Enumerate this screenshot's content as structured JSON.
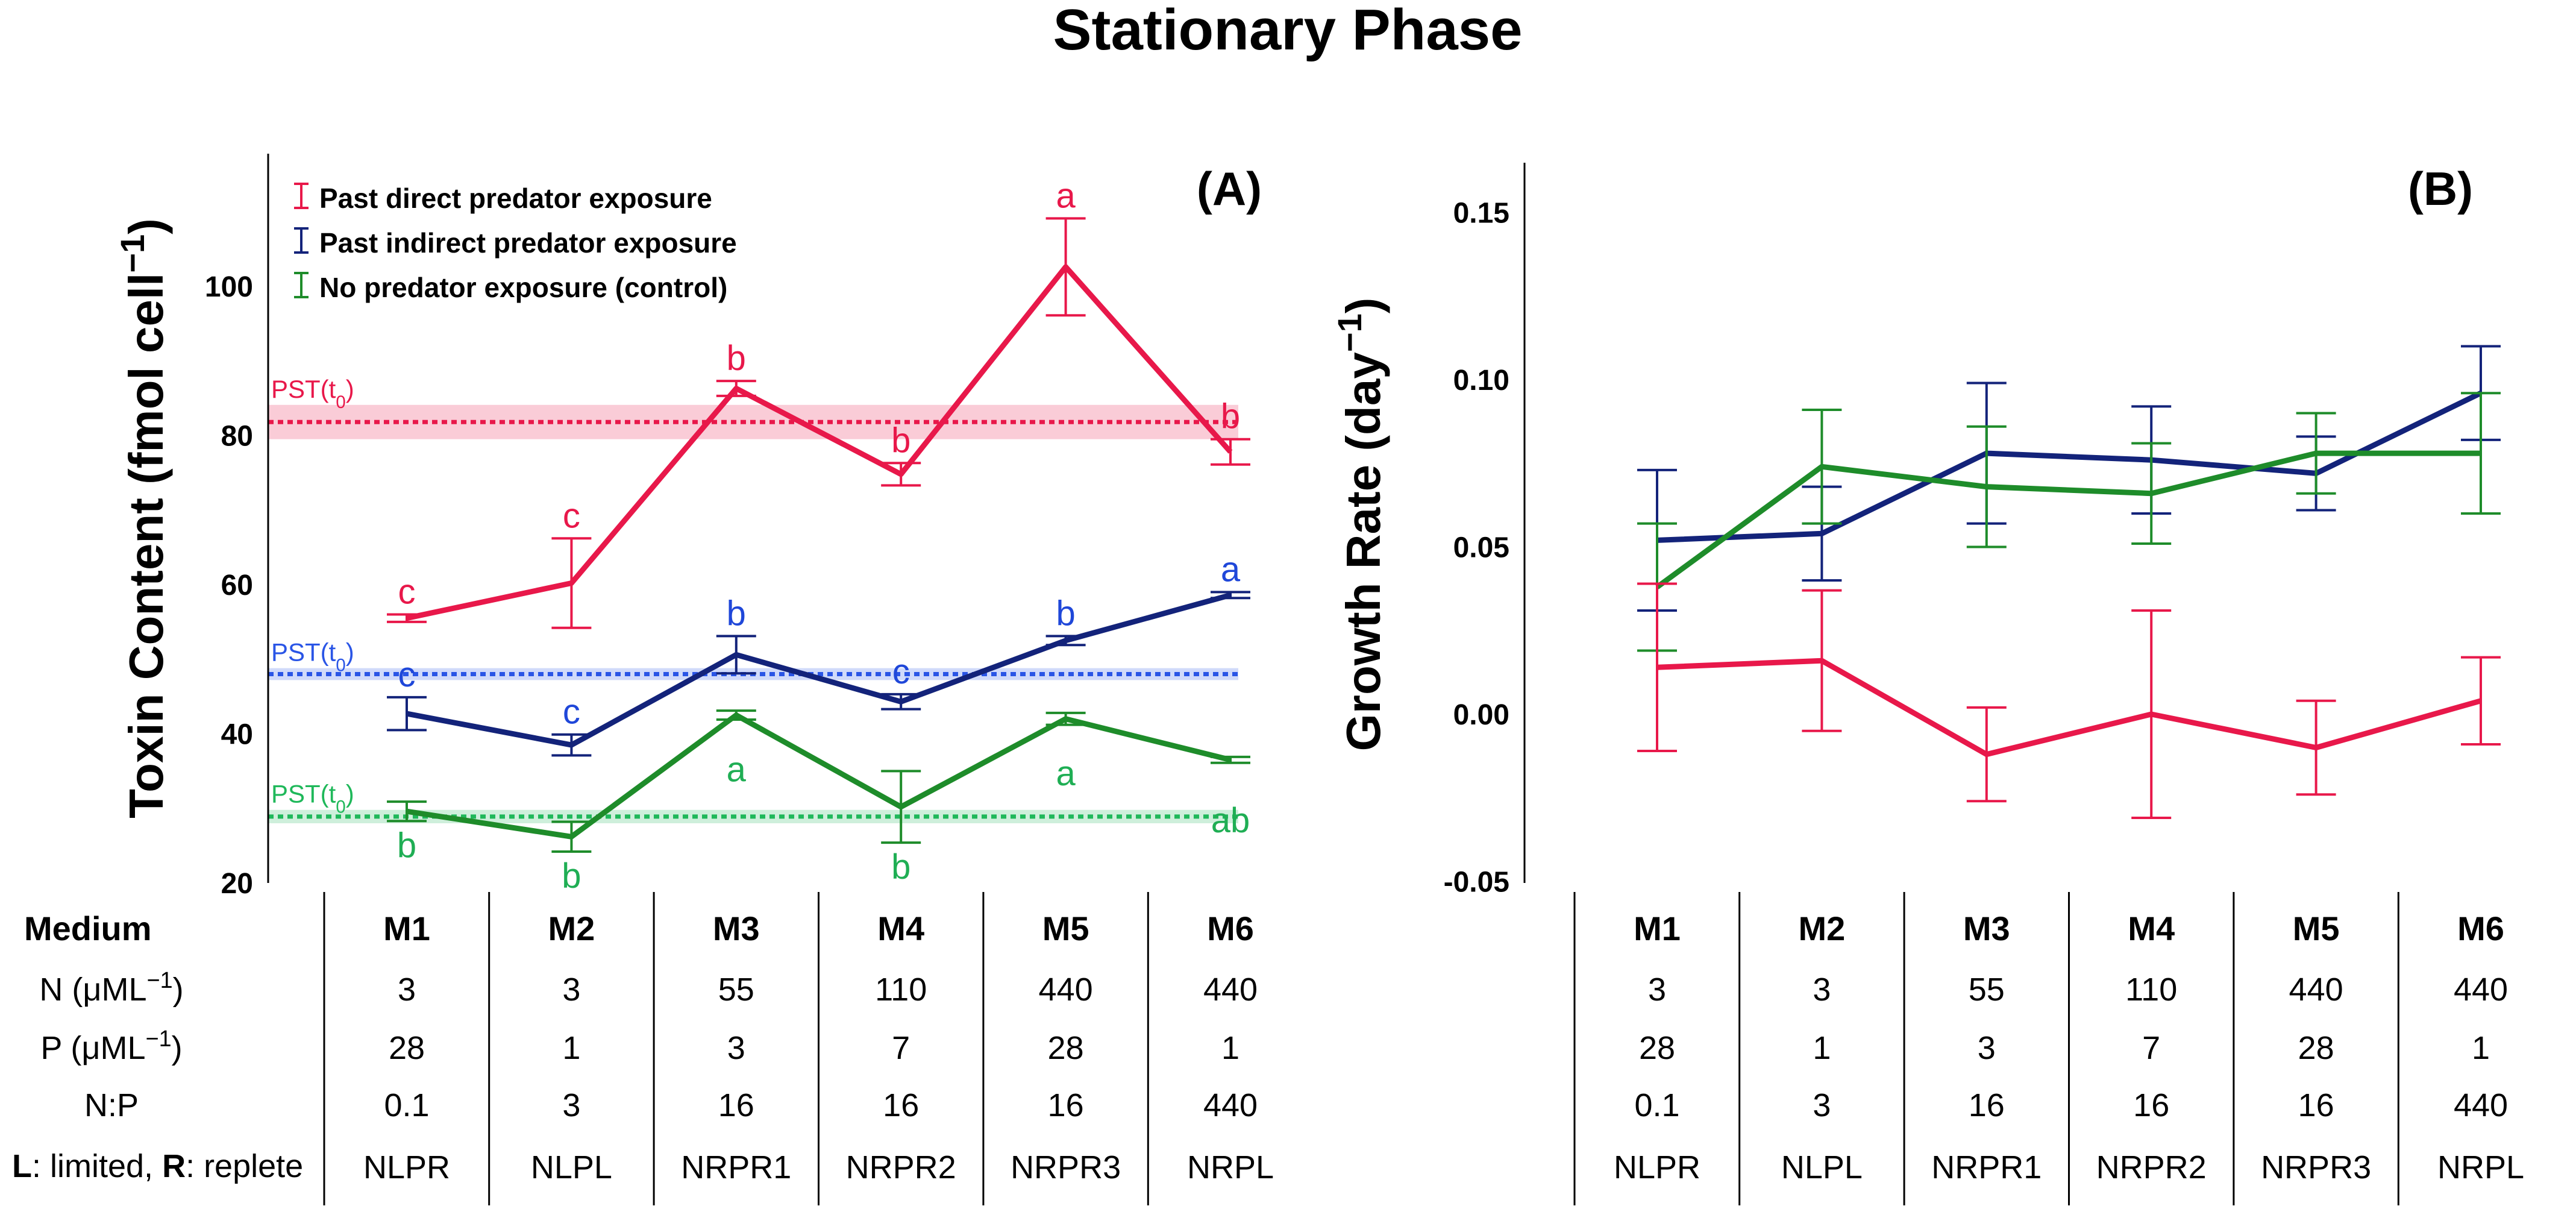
{
  "title": "Stationary Phase",
  "colors": {
    "direct": "#e8184a",
    "indirect": "#13237a",
    "control": "#1e8c2a",
    "pst_red": "#e8184a",
    "pst_blue": "#2a55e6",
    "pst_green": "#1fb85a",
    "label_blue": "#1f47d9",
    "label_green": "#1fae54"
  },
  "table": {
    "row_labels": [
      "Medium",
      "N (μML⁻¹)",
      "P (μML⁻¹)",
      "N:P"
    ],
    "footnote": {
      "l_key": "L",
      "l_text": ": limited, ",
      "r_key": "R",
      "r_text": ": replete"
    },
    "columns": [
      {
        "medium": "M1",
        "n": "3",
        "p": "28",
        "np": "0.1",
        "code": "NLPR"
      },
      {
        "medium": "M2",
        "n": "3",
        "p": "1",
        "np": "3",
        "code": "NLPL"
      },
      {
        "medium": "M3",
        "n": "55",
        "p": "3",
        "np": "16",
        "code": "NRPR1"
      },
      {
        "medium": "M4",
        "n": "110",
        "p": "7",
        "np": "16",
        "code": "NRPR2"
      },
      {
        "medium": "M5",
        "n": "440",
        "p": "28",
        "np": "16",
        "code": "NRPR3"
      },
      {
        "medium": "M6",
        "n": "440",
        "p": "1",
        "np": "440",
        "code": "NRPL"
      }
    ]
  },
  "chart_data": [
    {
      "type": "line",
      "panel": "(A)",
      "ylabel": "Toxin Content (fmol cell⁻¹)",
      "ylim": [
        20,
        118
      ],
      "yticks": [
        20,
        40,
        60,
        80,
        100
      ],
      "ytick_labels": [
        "20",
        "40",
        "60",
        "80",
        "100"
      ],
      "categories": [
        "M1",
        "M2",
        "M3",
        "M4",
        "M5",
        "M6"
      ],
      "legend_position": "top-left",
      "series": [
        {
          "name": "Past direct predator exposure",
          "color_key": "direct",
          "values": [
            55.5,
            60.2,
            86.3,
            74.8,
            102.6,
            77.8
          ],
          "errors": [
            0.5,
            6.0,
            1.0,
            1.5,
            6.5,
            1.7
          ],
          "labels": [
            "c",
            "c",
            "b",
            "b",
            "a",
            "b"
          ],
          "label_color_key": "direct"
        },
        {
          "name": "Past indirect predator exposure",
          "color_key": "indirect",
          "values": [
            42.7,
            38.5,
            50.6,
            44.3,
            52.5,
            58.6
          ],
          "errors": [
            2.2,
            1.4,
            2.5,
            1.0,
            0.6,
            0.4
          ],
          "labels": [
            "c",
            "c",
            "b",
            "c",
            "b",
            "a"
          ],
          "label_color_key": "label_blue"
        },
        {
          "name": "No predator exposure (control)",
          "color_key": "control",
          "values": [
            29.6,
            26.2,
            42.5,
            30.2,
            42.0,
            36.5
          ],
          "errors": [
            1.3,
            2.0,
            0.6,
            4.8,
            0.8,
            0.4
          ],
          "labels": [
            "b",
            "b",
            "a",
            "b",
            "a",
            "ab"
          ],
          "label_color_key": "label_green"
        }
      ],
      "reference_bands": [
        {
          "label": "PST(t0)",
          "value": 81.8,
          "band": [
            79.5,
            84.1
          ],
          "color_key": "pst_red"
        },
        {
          "label": "PST(t0)",
          "value": 48.0,
          "band": [
            47.2,
            48.8
          ],
          "color_key": "pst_blue"
        },
        {
          "label": "PST(t0)",
          "value": 28.9,
          "band": [
            28.0,
            29.8
          ],
          "color_key": "pst_green"
        }
      ]
    },
    {
      "type": "line",
      "panel": "(B)",
      "ylabel": "Growth Rate (day⁻¹)",
      "ylim": [
        -0.05,
        0.165
      ],
      "yticks": [
        -0.05,
        0.0,
        0.05,
        0.1,
        0.15
      ],
      "ytick_labels": [
        "-0.05",
        "0.00",
        "0.05",
        "0.10",
        "0.15"
      ],
      "categories": [
        "M1",
        "M2",
        "M3",
        "M4",
        "M5",
        "M6"
      ],
      "series": [
        {
          "name": "Past indirect predator exposure",
          "color_key": "indirect",
          "values": [
            0.052,
            0.054,
            0.078,
            0.076,
            0.072,
            0.096
          ],
          "errors": [
            0.021,
            0.014,
            0.021,
            0.016,
            0.011,
            0.014
          ]
        },
        {
          "name": "No predator exposure (control)",
          "color_key": "control",
          "values": [
            0.038,
            0.074,
            0.068,
            0.066,
            0.078,
            0.078
          ],
          "errors": [
            0.019,
            0.017,
            0.018,
            0.015,
            0.012,
            0.018
          ]
        },
        {
          "name": "Past direct predator exposure",
          "color_key": "direct",
          "values": [
            0.014,
            0.016,
            -0.012,
            0.0,
            -0.01,
            0.004
          ],
          "errors": [
            0.025,
            0.021,
            0.014,
            0.031,
            0.014,
            0.013
          ]
        }
      ]
    }
  ]
}
